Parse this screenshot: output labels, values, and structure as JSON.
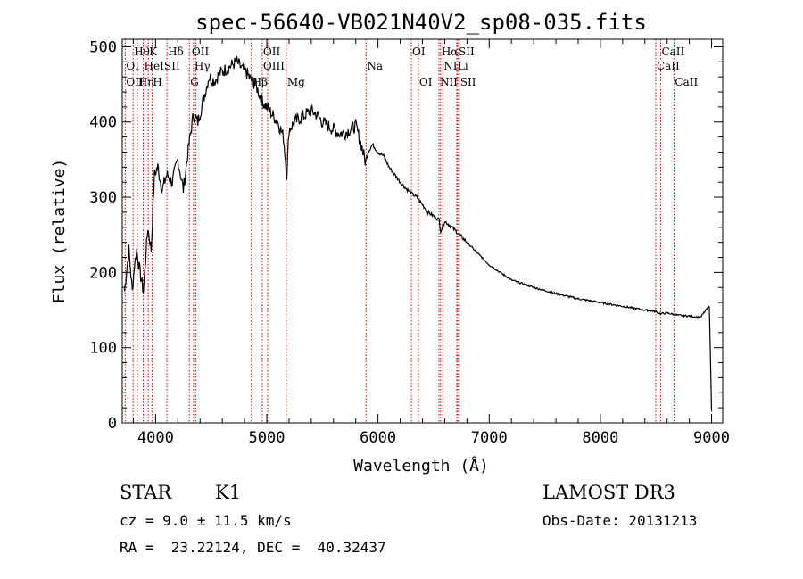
{
  "chart_data": {
    "type": "line",
    "title": "spec-56640-VB021N40V2_sp08-035.fits",
    "xlabel": "Wavelength (Å)",
    "ylabel": "Flux (relative)",
    "xlim": [
      3700,
      9100
    ],
    "ylim": [
      0,
      510
    ],
    "xticks": [
      4000,
      5000,
      6000,
      7000,
      8000,
      9000
    ],
    "yticks": [
      0,
      100,
      200,
      300,
      400,
      500
    ],
    "grid": false,
    "series": [
      {
        "x": [
          3720,
          3760,
          3790,
          3810,
          3830,
          3860,
          3890,
          3930,
          3960,
          3990,
          4020,
          4060,
          4100,
          4150,
          4200,
          4250,
          4300,
          4340,
          4380,
          4430,
          4480,
          4530,
          4580,
          4630,
          4680,
          4730,
          4780,
          4820,
          4860,
          4900,
          4950,
          5000,
          5050,
          5100,
          5150,
          5180,
          5200,
          5250,
          5300,
          5350,
          5400,
          5450,
          5500,
          5550,
          5600,
          5650,
          5700,
          5750,
          5800,
          5850,
          5890,
          5910,
          5950,
          6000,
          6050,
          6100,
          6150,
          6200,
          6250,
          6300,
          6350,
          6400,
          6450,
          6500,
          6550,
          6563,
          6600,
          6650,
          6700,
          6800,
          6900,
          7000,
          7100,
          7200,
          7400,
          7600,
          7800,
          8000,
          8200,
          8400,
          8500,
          8540,
          8600,
          8700,
          8800,
          8900,
          8950,
          8980,
          9000
        ],
        "y": [
          175,
          230,
          175,
          210,
          230,
          200,
          175,
          260,
          230,
          330,
          340,
          310,
          330,
          320,
          350,
          310,
          370,
          410,
          400,
          430,
          460,
          455,
          465,
          470,
          475,
          480,
          470,
          465,
          455,
          450,
          430,
          420,
          410,
          400,
          380,
          330,
          390,
          400,
          405,
          410,
          415,
          410,
          400,
          395,
          390,
          385,
          385,
          390,
          395,
          370,
          345,
          360,
          370,
          360,
          355,
          340,
          330,
          320,
          312,
          305,
          300,
          290,
          280,
          275,
          270,
          255,
          268,
          262,
          255,
          240,
          225,
          210,
          200,
          190,
          180,
          172,
          165,
          160,
          155,
          150,
          148,
          145,
          146,
          143,
          142,
          140,
          150,
          155,
          15
        ]
      }
    ],
    "lines": [
      {
        "label": "Hθ",
        "wave": 3798,
        "row": 0
      },
      {
        "label": "K",
        "wave": 3934,
        "row": 0
      },
      {
        "label": "Hδ",
        "wave": 4102,
        "row": 0
      },
      {
        "label": "OII",
        "wave": 4317,
        "row": 0
      },
      {
        "label": "OII",
        "wave": 4959,
        "row": 0
      },
      {
        "label": "OI",
        "wave": 6300,
        "row": 0
      },
      {
        "label": "Hα",
        "wave": 6563,
        "row": 0
      },
      {
        "label": "SII",
        "wave": 6717,
        "row": 0
      },
      {
        "label": "CaII",
        "wave": 8542,
        "row": 0
      },
      {
        "label": "OI",
        "wave": 3727,
        "row": 1
      },
      {
        "label": "HeI",
        "wave": 3889,
        "row": 1
      },
      {
        "label": "SII",
        "wave": 4069,
        "row": 1
      },
      {
        "label": "Hγ",
        "wave": 4341,
        "row": 1
      },
      {
        "label": "OIII",
        "wave": 4959,
        "row": 1
      },
      {
        "label": "Na",
        "wave": 5893,
        "row": 1
      },
      {
        "label": "NII",
        "wave": 6583,
        "row": 1
      },
      {
        "label": "Li",
        "wave": 6708,
        "row": 1
      },
      {
        "label": "CaII",
        "wave": 8498,
        "row": 1
      },
      {
        "label": "OII",
        "wave": 3727,
        "row": 2
      },
      {
        "label": "Hη",
        "wave": 3835,
        "row": 2
      },
      {
        "label": "H",
        "wave": 3968,
        "row": 2
      },
      {
        "label": "G",
        "wave": 4304,
        "row": 2
      },
      {
        "label": "Hβ",
        "wave": 4861,
        "row": 2
      },
      {
        "label": "Mg",
        "wave": 5175,
        "row": 2
      },
      {
        "label": "OI",
        "wave": 6363,
        "row": 2
      },
      {
        "label": "NII",
        "wave": 6548,
        "row": 2
      },
      {
        "label": "SII",
        "wave": 6731,
        "row": 2
      },
      {
        "label": "CaII",
        "wave": 8662,
        "row": 2
      }
    ],
    "marker_waves": [
      3727,
      3798,
      3835,
      3889,
      3934,
      3968,
      4102,
      4304,
      4341,
      4363,
      4861,
      4959,
      5007,
      5175,
      5893,
      6300,
      6363,
      6548,
      6563,
      6583,
      6708,
      6717,
      6731,
      8498,
      8542,
      8662
    ],
    "colors": {
      "spectrum": "#000000",
      "markers": "#cc0000",
      "background": "#ffffff"
    }
  },
  "info": {
    "object_class": "STAR",
    "subclass": "K1",
    "survey": "LAMOST DR3",
    "redshift": "cz = 9.0 ± 11.5 km/s",
    "obs_date": "Obs-Date: 20131213",
    "coords": "RA =  23.22124, DEC =  40.32437"
  }
}
